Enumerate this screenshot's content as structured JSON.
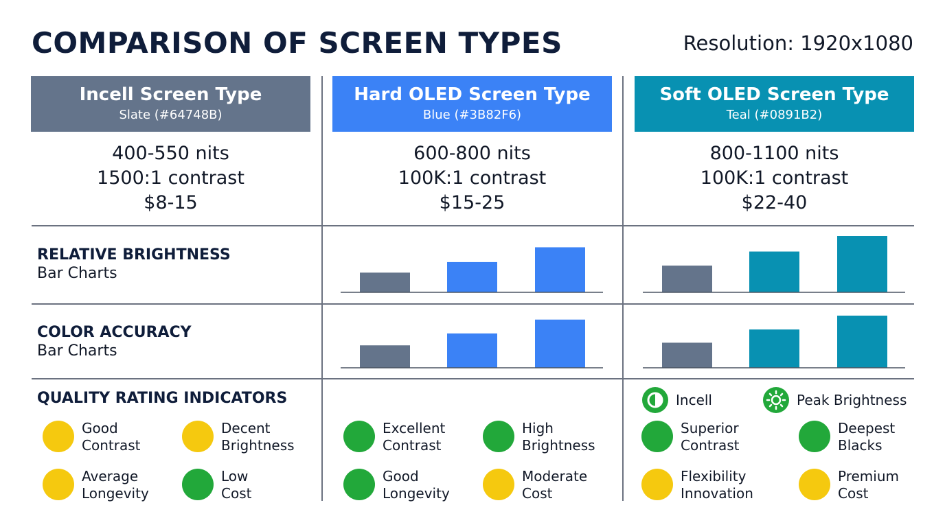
{
  "title": "COMPARISON OF SCREEN TYPES",
  "resolution": "Resolution: 1920x1080",
  "colors": {
    "slate": "#64748B",
    "blue": "#3B82F6",
    "teal": "#0891B2",
    "green": "#22A83A",
    "yellow": "#F5C90F"
  },
  "columns": [
    {
      "name": "Incell Screen Type",
      "swatch": "Slate (#64748B)",
      "brightness": "400-550 nits",
      "contrast": "1500:1 contrast",
      "price": "$8-15"
    },
    {
      "name": "Hard OLED Screen Type",
      "swatch": "Blue (#3B82F6)",
      "brightness": "600-800 nits",
      "contrast": "100K:1 contrast",
      "price": "$15-25"
    },
    {
      "name": "Soft OLED Screen Type",
      "swatch": "Teal (#0891B2)",
      "brightness": "800-1100 nits",
      "contrast": "100K:1 contrast",
      "price": "$22-40"
    }
  ],
  "rows": {
    "brightness": {
      "heading": "RELATIVE BRIGHTNESS",
      "sub": "Bar Charts"
    },
    "accuracy": {
      "heading": "COLOR ACCURACY",
      "sub": "Bar Charts"
    },
    "quality": {
      "heading": "QUALITY RATING INDICATORS"
    }
  },
  "chart_data": [
    {
      "type": "bar",
      "title": "RELATIVE BRIGHTNESS",
      "panel": "Hard OLED Screen Type",
      "values": [
        28,
        43,
        64
      ],
      "colors": [
        "#64748B",
        "#3B82F6",
        "#3B82F6"
      ],
      "ylim": [
        0,
        80
      ]
    },
    {
      "type": "bar",
      "title": "RELATIVE BRIGHTNESS",
      "panel": "Soft OLED Screen Type",
      "values": [
        38,
        58,
        80
      ],
      "colors": [
        "#64748B",
        "#0891B2",
        "#0891B2"
      ],
      "ylim": [
        0,
        80
      ]
    },
    {
      "type": "bar",
      "title": "COLOR ACCURACY",
      "panel": "Hard OLED Screen Type",
      "values": [
        34,
        52,
        73
      ],
      "colors": [
        "#64748B",
        "#3B82F6",
        "#3B82F6"
      ],
      "ylim": [
        0,
        80
      ]
    },
    {
      "type": "bar",
      "title": "COLOR ACCURACY",
      "panel": "Soft OLED Screen Type",
      "values": [
        38,
        58,
        79
      ],
      "colors": [
        "#64748B",
        "#0891B2",
        "#0891B2"
      ],
      "ylim": [
        0,
        80
      ]
    }
  ],
  "legend": [
    {
      "label": "Incell",
      "icon": "half-circle-icon"
    },
    {
      "label": "Peak Brightness",
      "icon": "sun-icon"
    }
  ],
  "ratings": {
    "incell": [
      {
        "line1": "Good",
        "line2": "Contrast",
        "level": "yellow"
      },
      {
        "line1": "Decent",
        "line2": "Brightness",
        "level": "yellow"
      },
      {
        "line1": "Average",
        "line2": "Longevity",
        "level": "yellow"
      },
      {
        "line1": "Low",
        "line2": "Cost",
        "level": "green"
      }
    ],
    "hard_oled": [
      {
        "line1": "Excellent",
        "line2": "Contrast",
        "level": "green"
      },
      {
        "line1": "High",
        "line2": "Brightness",
        "level": "green"
      },
      {
        "line1": "Good",
        "line2": "Longevity",
        "level": "green"
      },
      {
        "line1": "Moderate",
        "line2": "Cost",
        "level": "yellow"
      }
    ],
    "soft_oled": [
      {
        "line1": "Superior",
        "line2": "Contrast",
        "level": "green"
      },
      {
        "line1": "Deepest",
        "line2": "Blacks",
        "level": "green"
      },
      {
        "line1": "Flexibility",
        "line2": "Innovation",
        "level": "yellow"
      },
      {
        "line1": "Premium",
        "line2": "Cost",
        "level": "yellow"
      }
    ]
  }
}
